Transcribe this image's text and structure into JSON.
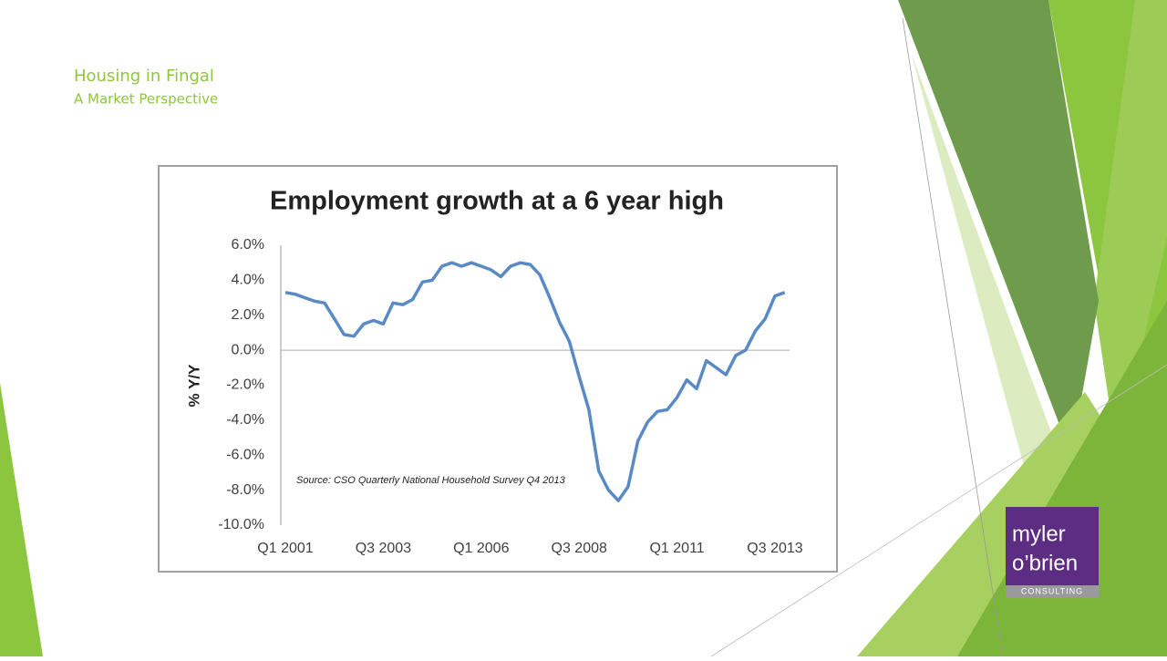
{
  "header": {
    "title": "Housing in Fingal",
    "subtitle": "A Market Perspective"
  },
  "logo": {
    "line1": "myler",
    "line2": "o’brien",
    "tagline": "CONSULTING"
  },
  "chart_data": {
    "type": "line",
    "title": "Employment growth at a 6 year high",
    "y_label": "% Y/Y",
    "annotation": "Source: CSO Quarterly National Household Survey Q4 2013",
    "categories": [
      "Q1 2001",
      null,
      null,
      null,
      null,
      null,
      null,
      null,
      null,
      null,
      "Q3 2003",
      null,
      null,
      null,
      null,
      null,
      null,
      null,
      null,
      null,
      "Q1 2006",
      null,
      null,
      null,
      null,
      null,
      null,
      null,
      null,
      null,
      "Q3 2008",
      null,
      null,
      null,
      null,
      null,
      null,
      null,
      null,
      null,
      "Q1 2011",
      null,
      null,
      null,
      null,
      null,
      null,
      null,
      null,
      null,
      "Q3 2013",
      null
    ],
    "values": [
      3.3,
      3.2,
      3.0,
      2.8,
      2.7,
      1.8,
      0.9,
      0.8,
      1.5,
      1.7,
      1.5,
      2.7,
      2.6,
      2.9,
      3.9,
      4.0,
      4.8,
      5.0,
      4.8,
      5.0,
      4.8,
      4.6,
      4.2,
      4.8,
      5.0,
      4.9,
      4.3,
      3.0,
      1.6,
      0.5,
      -1.5,
      -3.4,
      -6.9,
      -8.0,
      -8.6,
      -7.8,
      -5.2,
      -4.1,
      -3.5,
      -3.4,
      -2.7,
      -1.7,
      -2.2,
      -0.6,
      -1.0,
      -1.4,
      -0.3,
      0.0,
      1.1,
      1.8,
      3.1,
      3.3
    ],
    "color": "#5a8ac6",
    "ylim": [
      -10,
      6
    ],
    "yticks": [
      {
        "value": 6,
        "label": "6.0%"
      },
      {
        "value": 4,
        "label": "4.0%"
      },
      {
        "value": 2,
        "label": "2.0%"
      },
      {
        "value": 0,
        "label": "0.0%"
      },
      {
        "value": -2,
        "label": "-2.0%"
      },
      {
        "value": -4,
        "label": "-4.0%"
      },
      {
        "value": -6,
        "label": "-6.0%"
      },
      {
        "value": -8,
        "label": "-8.0%"
      },
      {
        "value": -10,
        "label": "-10.0%"
      }
    ],
    "grid": false
  }
}
